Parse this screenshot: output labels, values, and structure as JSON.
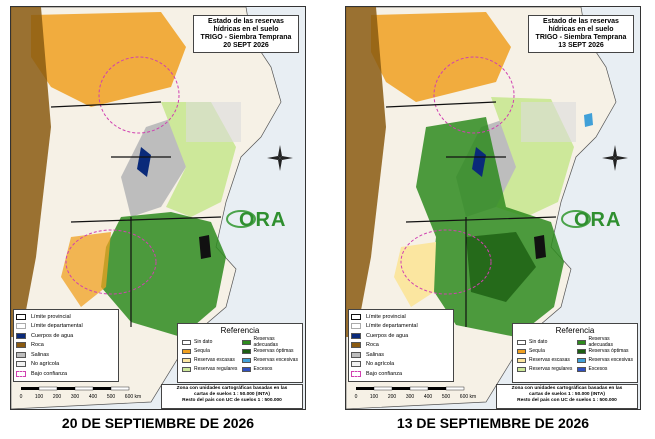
{
  "panels": [
    {
      "title_lines": [
        "Estado de las reservas",
        "hídricas en el suelo",
        "TRIGO - Siembra Temprana",
        "20 SEPT 2026"
      ],
      "caption": "20 DE SEPTIEMBRE DE 2026"
    },
    {
      "title_lines": [
        "Estado de las reservas",
        "hídricas en el suelo",
        "TRIGO - Siembra Temprana",
        "13 SEPT 2026"
      ],
      "caption": "13 DE SEPTIEMBRE DE 2026"
    }
  ],
  "legend_left": [
    {
      "label": "Límite provincial",
      "color": "#ffffff"
    },
    {
      "label": "Límite departamental",
      "color": "#ffffff"
    },
    {
      "label": "Cuerpos de agua",
      "color": "#0a2a7a"
    },
    {
      "label": "Roca",
      "color": "#8a5a10"
    },
    {
      "label": "Salinas",
      "color": "#bdbdbd"
    },
    {
      "label": "No agrícola",
      "color": "#f2f2f2"
    },
    {
      "label": "Bajo confianza",
      "color": "#ffffff"
    }
  ],
  "reference": {
    "title": "Referencia",
    "items": [
      {
        "label": "Sin dato",
        "color": "#ffffff"
      },
      {
        "label": "Reservas adecuadas",
        "color": "#2e8b1e"
      },
      {
        "label": "Sequía",
        "color": "#f0a020"
      },
      {
        "label": "Reservas óptimas",
        "color": "#1c5e12"
      },
      {
        "label": "Reservas escasas",
        "color": "#fbe6a0"
      },
      {
        "label": "Reservas excesivas",
        "color": "#40a0d8"
      },
      {
        "label": "Reservas regulares",
        "color": "#cde89a"
      },
      {
        "label": "Excesos",
        "color": "#3050c0"
      }
    ]
  },
  "note_lines": [
    "Zona con unidades cartográficas basadas en las",
    "cartas de suelos 1 : 50.000 (INTA)",
    "Resto del país con UC de suelos 1 : 500.000"
  ],
  "scale": {
    "ticks": [
      "0",
      "100",
      "200",
      "300",
      "400",
      "500",
      "600 km"
    ]
  },
  "logo_text": "ORA",
  "colors": {
    "drought": "#f0a020",
    "adequate": "#2e8b1e",
    "optimal": "#1c5e12",
    "regular": "#cde89a",
    "scarce": "#fbe6a0",
    "rock": "#8a5a10",
    "water": "#0a2a7a",
    "salinas": "#bdbdbd",
    "sea": "#e8eef3"
  }
}
